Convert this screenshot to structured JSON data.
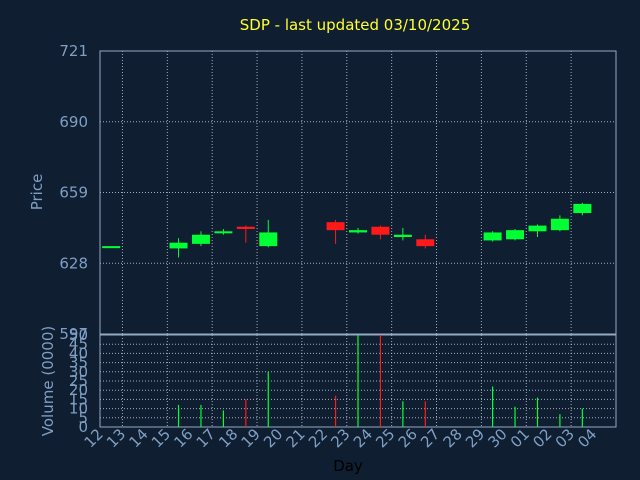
{
  "colors": {
    "background": "#0f1e30",
    "frame": "#93a9c4",
    "grid": "#c8d3e0",
    "title": "#ffff33",
    "tick_text": "#7f9fc4",
    "axis_text": "#7f9fc4",
    "xlabel_text": "#000000",
    "up": "#00ff33",
    "down": "#ff1a1a"
  },
  "chart_data": [
    {
      "type": "candlestick",
      "title": "SDP - last updated 03/10/2025",
      "ylabel": "Price",
      "ylim": [
        597,
        721
      ],
      "yticks": [
        "721",
        "690",
        "659",
        "628",
        "597"
      ],
      "ytick_values": [
        721,
        690,
        659,
        628,
        597
      ],
      "grid": true,
      "days": [
        "12",
        "13",
        "14",
        "15",
        "16",
        "17",
        "18",
        "19",
        "20",
        "21",
        "22",
        "23",
        "24",
        "25",
        "26",
        "27",
        "28",
        "29",
        "30",
        "01",
        "02",
        "03",
        "04"
      ],
      "candles": [
        {
          "day": "12",
          "open": 635.5,
          "close": 635.5,
          "high": 635.5,
          "low": 635.5,
          "dir": "up"
        },
        {
          "day": "15",
          "open": 634.5,
          "close": 637.0,
          "high": 639.0,
          "low": 630.5,
          "dir": "up"
        },
        {
          "day": "16",
          "open": 636.5,
          "close": 640.5,
          "high": 642.0,
          "low": 635.5,
          "dir": "up"
        },
        {
          "day": "17",
          "open": 641.5,
          "close": 642.0,
          "high": 643.0,
          "low": 640.5,
          "dir": "up"
        },
        {
          "day": "18",
          "open": 644.0,
          "close": 643.0,
          "high": 644.5,
          "low": 637.0,
          "dir": "down"
        },
        {
          "day": "19",
          "open": 635.5,
          "close": 641.5,
          "high": 647.0,
          "low": 635.0,
          "dir": "up"
        },
        {
          "day": "22",
          "open": 646.0,
          "close": 642.5,
          "high": 647.0,
          "low": 636.5,
          "dir": "down"
        },
        {
          "day": "23",
          "open": 641.5,
          "close": 642.5,
          "high": 643.5,
          "low": 641.0,
          "dir": "up"
        },
        {
          "day": "24",
          "open": 644.0,
          "close": 640.5,
          "high": 644.5,
          "low": 638.5,
          "dir": "down"
        },
        {
          "day": "25",
          "open": 639.5,
          "close": 640.5,
          "high": 643.5,
          "low": 638.0,
          "dir": "up"
        },
        {
          "day": "26",
          "open": 638.5,
          "close": 635.5,
          "high": 640.5,
          "low": 634.5,
          "dir": "down"
        },
        {
          "day": "29",
          "open": 638.0,
          "close": 641.5,
          "high": 642.0,
          "low": 637.5,
          "dir": "up"
        },
        {
          "day": "30",
          "open": 638.5,
          "close": 642.5,
          "high": 643.0,
          "low": 638.0,
          "dir": "up"
        },
        {
          "day": "01",
          "open": 642.0,
          "close": 644.5,
          "high": 645.0,
          "low": 639.5,
          "dir": "up"
        },
        {
          "day": "02",
          "open": 642.5,
          "close": 647.5,
          "high": 649.0,
          "low": 642.0,
          "dir": "up"
        },
        {
          "day": "03",
          "open": 650.0,
          "close": 654.0,
          "high": 654.5,
          "low": 649.0,
          "dir": "up"
        }
      ]
    },
    {
      "type": "bar",
      "ylabel": "Volume (0000)",
      "xlabel": "Day",
      "ylim": [
        0,
        50
      ],
      "yticks": [
        "50",
        "45",
        "40",
        "35",
        "30",
        "25",
        "20",
        "15",
        "10",
        "5",
        "0"
      ],
      "ytick_values": [
        50,
        45,
        40,
        35,
        30,
        25,
        20,
        15,
        10,
        5,
        0
      ],
      "grid": true,
      "volumes": [
        {
          "day": "15",
          "value": 12,
          "dir": "up"
        },
        {
          "day": "16",
          "value": 12,
          "dir": "up"
        },
        {
          "day": "17",
          "value": 9,
          "dir": "up"
        },
        {
          "day": "18",
          "value": 15,
          "dir": "down"
        },
        {
          "day": "19",
          "value": 30,
          "dir": "up"
        },
        {
          "day": "22",
          "value": 17,
          "dir": "down"
        },
        {
          "day": "23",
          "value": 50,
          "dir": "up"
        },
        {
          "day": "24",
          "value": 50,
          "dir": "down"
        },
        {
          "day": "25",
          "value": 14,
          "dir": "up"
        },
        {
          "day": "26",
          "value": 14,
          "dir": "down"
        },
        {
          "day": "29",
          "value": 22,
          "dir": "up"
        },
        {
          "day": "30",
          "value": 11,
          "dir": "up"
        },
        {
          "day": "01",
          "value": 16,
          "dir": "up"
        },
        {
          "day": "02",
          "value": 7,
          "dir": "up"
        },
        {
          "day": "03",
          "value": 10,
          "dir": "up"
        }
      ]
    }
  ]
}
